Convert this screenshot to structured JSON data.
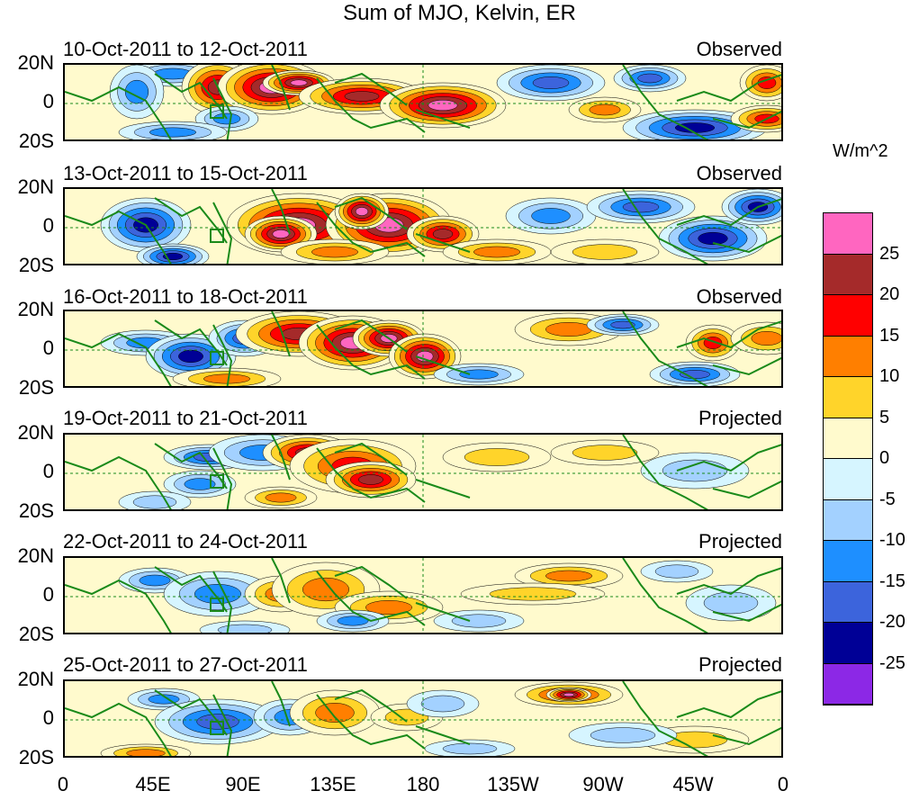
{
  "title": "Sum of MJO, Kelvin, ER",
  "panels": [
    {
      "dates": "10-Oct-2011 to 12-Oct-2011",
      "status": "Observed"
    },
    {
      "dates": "13-Oct-2011 to 15-Oct-2011",
      "status": "Observed"
    },
    {
      "dates": "16-Oct-2011 to 18-Oct-2011",
      "status": "Observed"
    },
    {
      "dates": "19-Oct-2011 to 21-Oct-2011",
      "status": "Projected"
    },
    {
      "dates": "22-Oct-2011 to 24-Oct-2011",
      "status": "Projected"
    },
    {
      "dates": "25-Oct-2011 to 27-Oct-2011",
      "status": "Projected"
    }
  ],
  "y_ticks": [
    "20N",
    "0",
    "20S"
  ],
  "x_ticks": [
    "0",
    "45E",
    "90E",
    "135E",
    "180",
    "135W",
    "90W",
    "45W",
    "0"
  ],
  "colorbar": {
    "unit": "W/m^2",
    "labels": [
      "25",
      "20",
      "15",
      "10",
      "5",
      "0",
      "-5",
      "-10",
      "-15",
      "-20",
      "-25"
    ],
    "colors": [
      "#ff66c0",
      "#a52a2a",
      "#ff0000",
      "#ff7f00",
      "#ffd42a",
      "#fffacd",
      "#d6f5ff",
      "#a3d1ff",
      "#1e8fff",
      "#3c64dc",
      "#000096",
      "#8c28e6"
    ]
  }
}
